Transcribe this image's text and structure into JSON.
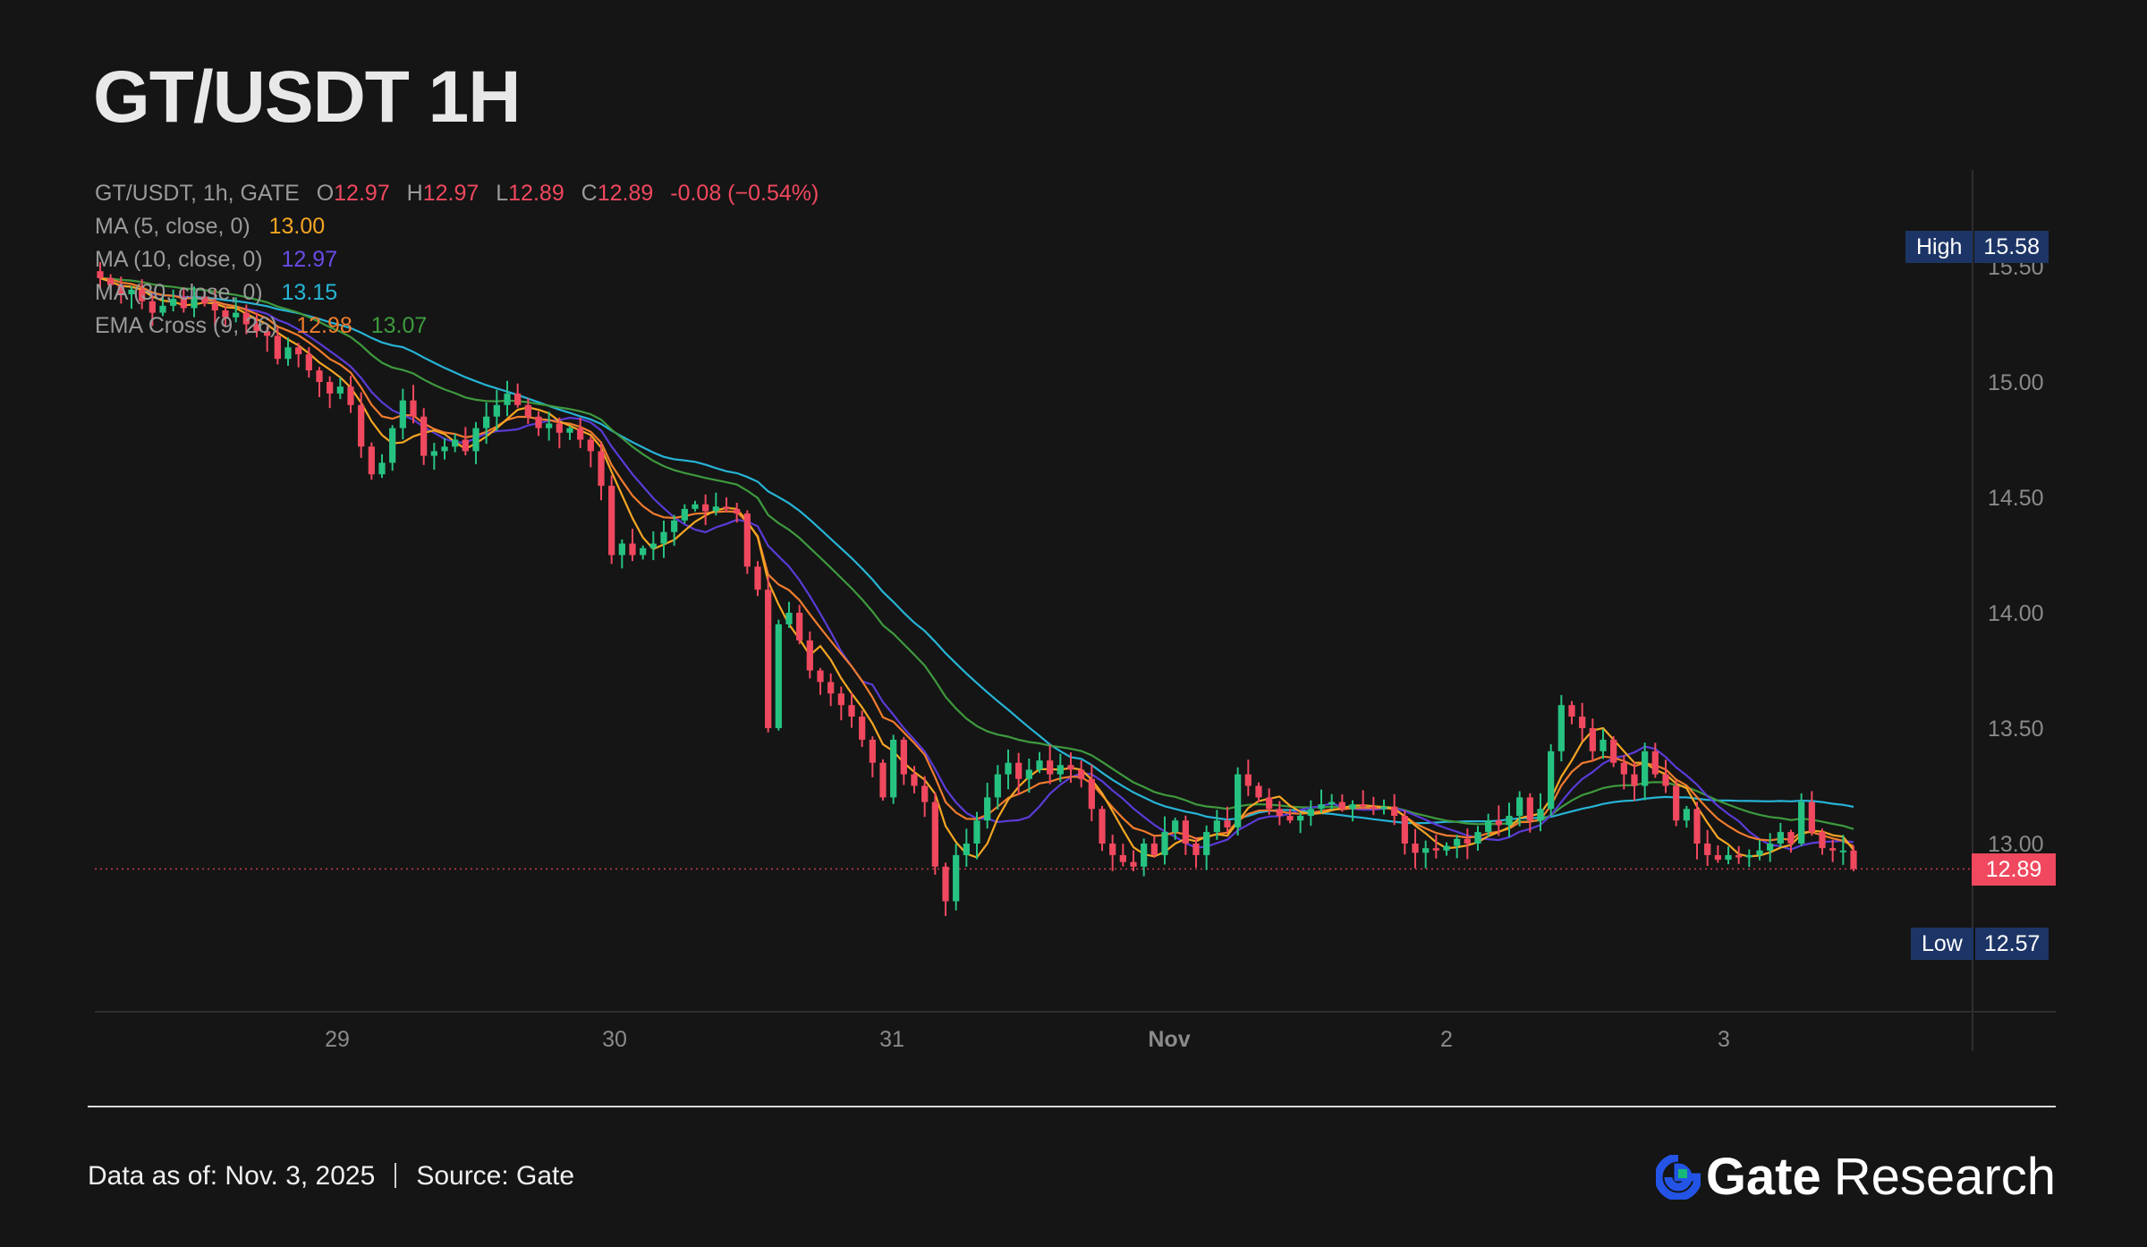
{
  "title": "GT/USDT 1H",
  "legend": {
    "symbol_line": "GT/USDT, 1h, GATE",
    "o_label": "O",
    "o_value": "12.97",
    "h_label": "H",
    "h_value": "12.97",
    "l_label": "L",
    "l_value": "12.89",
    "c_label": "C",
    "c_value": "12.89",
    "change": "-0.08 (−0.54%)",
    "ma5_label": "MA (5, close, 0)",
    "ma5_value": "13.00",
    "ma10_label": "MA (10, close, 0)",
    "ma10_value": "12.97",
    "ma30_label": "MA (30, close, 0)",
    "ma30_value": "13.15",
    "ema_label": "EMA Cross (9, 26)",
    "ema_fast_value": "12.98",
    "ema_slow_value": "13.07"
  },
  "high_tag": {
    "label": "High",
    "value": "15.58"
  },
  "low_tag": {
    "label": "Low",
    "value": "12.57"
  },
  "last_price_tag": "12.89",
  "footer": {
    "data_as_of": "Data as of: Nov. 3, 2025",
    "source": "Source:  Gate"
  },
  "brand": {
    "name": "Gate",
    "suffix": "Research"
  },
  "colors": {
    "up": "#26c281",
    "down": "#f0485e",
    "ma5": "#f5a623",
    "ma10": "#5b3bd6",
    "ma30": "#27b4d6",
    "ema_fast": "#f07c2e",
    "ema_slow": "#3e9a3e",
    "tag_bg": "#1d3566"
  },
  "chart_data": {
    "type": "candlestick",
    "title": "GT/USDT 1H",
    "x_ticks": [
      "29",
      "30",
      "31",
      "Nov",
      "2",
      "3"
    ],
    "y_ticks": [
      "13.00",
      "13.50",
      "14.00",
      "14.50",
      "15.00",
      "15.50"
    ],
    "ylim": [
      12.5,
      15.8
    ],
    "last_price": 12.89,
    "high": 15.58,
    "low": 12.57,
    "closes": [
      15.45,
      15.42,
      15.38,
      15.4,
      15.35,
      15.3,
      15.33,
      15.36,
      15.32,
      15.37,
      15.34,
      15.31,
      15.28,
      15.3,
      15.25,
      15.22,
      15.2,
      15.1,
      15.15,
      15.12,
      15.05,
      15.0,
      14.95,
      14.98,
      14.9,
      14.72,
      14.6,
      14.65,
      14.8,
      14.92,
      14.85,
      14.68,
      14.7,
      14.72,
      14.75,
      14.7,
      14.8,
      14.85,
      14.9,
      14.95,
      14.9,
      14.85,
      14.8,
      14.82,
      14.78,
      14.8,
      14.75,
      14.7,
      14.55,
      14.25,
      14.3,
      14.25,
      14.28,
      14.3,
      14.35,
      14.4,
      14.45,
      14.47,
      14.44,
      14.46,
      14.45,
      14.43,
      14.2,
      14.1,
      13.5,
      13.95,
      14.0,
      13.88,
      13.75,
      13.7,
      13.65,
      13.6,
      13.55,
      13.45,
      13.35,
      13.2,
      13.45,
      13.3,
      13.25,
      13.18,
      12.9,
      12.75,
      12.95,
      13.0,
      13.1,
      13.2,
      13.3,
      13.35,
      13.28,
      13.32,
      13.36,
      13.3,
      13.34,
      13.32,
      13.28,
      13.15,
      13.0,
      12.95,
      12.92,
      12.9,
      13.0,
      12.95,
      13.05,
      13.1,
      13.0,
      12.95,
      13.05,
      13.1,
      13.07,
      13.3,
      13.25,
      13.2,
      13.15,
      13.12,
      13.1,
      13.12,
      13.15,
      13.17,
      13.18,
      13.15,
      13.17,
      13.16,
      13.15,
      13.16,
      13.12,
      13.0,
      12.96,
      12.98,
      12.97,
      12.99,
      13.02,
      13.0,
      13.05,
      13.1,
      13.08,
      13.12,
      13.2,
      13.1,
      13.15,
      13.4,
      13.6,
      13.55,
      13.5,
      13.4,
      13.45,
      13.35,
      13.3,
      13.25,
      13.4,
      13.3,
      13.25,
      13.1,
      13.15,
      13.0,
      12.95,
      12.93,
      12.95,
      12.94,
      12.95,
      12.97,
      13.0,
      13.05,
      13.0,
      13.18,
      13.05,
      12.98,
      12.97,
      12.97,
      12.89
    ]
  }
}
